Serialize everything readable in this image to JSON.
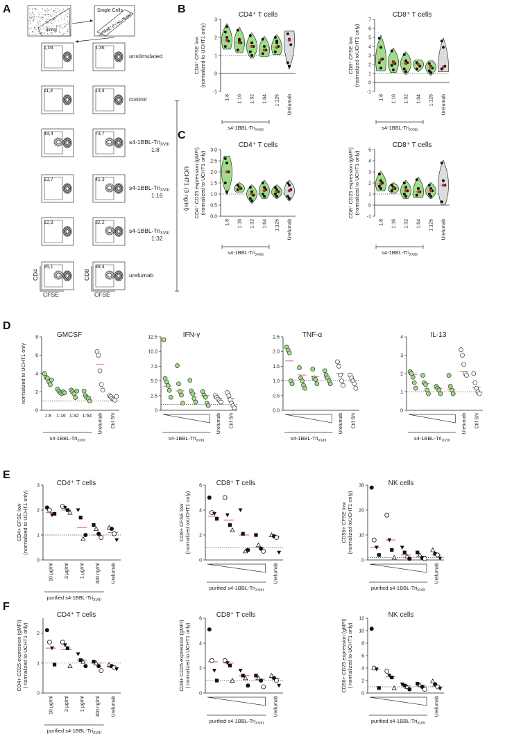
{
  "panel_labels": [
    "A",
    "B",
    "C",
    "D",
    "E",
    "F"
  ],
  "panel_a": {
    "gate_labels": [
      "living",
      "Single Cells"
    ],
    "rows": [
      {
        "cd4": "1,04",
        "cd8": "1,36",
        "label": "unstimulated",
        "label2": ""
      },
      {
        "cd4": "11,4",
        "cd8": "13,4",
        "label": "control",
        "label2": ""
      },
      {
        "cd4": "49,4",
        "cd8": "73,7",
        "label": "s4-1BBL-Tri",
        "sub": "XVIII",
        "label2": "1:8"
      },
      {
        "cd4": "13,7",
        "cd8": "41,3",
        "label": "s4-1BBL-Tri",
        "sub": "XVIII",
        "label2": "1:16"
      },
      {
        "cd4": "12,9",
        "cd8": "32,2",
        "label": "s4-1BBL-Tri",
        "sub": "XVIII",
        "label2": "1:32"
      },
      {
        "cd4": "26,1",
        "cd8": "39,4",
        "label": "urelumab",
        "label2": ""
      }
    ],
    "axis_y_left": "CD4",
    "axis_y_right": "CD8",
    "axis_x": "CFSE",
    "bracket_label": "UCHT1 (3 ng/ml)"
  },
  "common": {
    "agent": "s4-1BBL-Tri",
    "agent_sub": "XVIII",
    "purified_agent": "purified s4-1BBL-Tri",
    "urelumab": "Urelumab",
    "ctrl_sn": "Ctrl SN",
    "dilutions": [
      "1:8",
      "1:16",
      "1:32",
      "1:64",
      "1:125"
    ],
    "concentrations": [
      "10 µg/ml",
      "3 µg/ml",
      "1 µg/ml",
      "300 ng/ml"
    ]
  },
  "colors": {
    "green": "#9fdd88",
    "grey": "#dcdcdc",
    "median": "#e07070",
    "red_dot": "#c03030"
  },
  "chart_data": [
    {
      "id": "B1",
      "type": "violin",
      "title": "CD4⁺ T cells",
      "ylabel": "CD4⁺ CFSE low",
      "ylabel2": "(normalized to UCHT1 only)",
      "ylim": [
        -1,
        3
      ],
      "yticks": [
        "-1",
        "0",
        "1",
        "2",
        "3"
      ],
      "ytick_vals": [
        -1,
        0,
        1,
        2,
        3
      ],
      "categories": [
        "1:8",
        "1:16",
        "1:32",
        "1:64",
        "1:125",
        "Urelumab"
      ],
      "points": [
        [
          2.3,
          2.0,
          1.8,
          1.5,
          2.6
        ],
        [
          2.4,
          1.8,
          1.7,
          1.3,
          1.9
        ],
        [
          2.1,
          1.7,
          1.5,
          1.2,
          1.0
        ],
        [
          1.9,
          1.5,
          1.3,
          1.1
        ],
        [
          2.0,
          1.7,
          1.5,
          1.2,
          1.8
        ],
        [
          2.2,
          1.9,
          1.6,
          0.6,
          0.4
        ]
      ],
      "medians": [
        1.85,
        1.7,
        1.5,
        1.3,
        1.45,
        1.85
      ]
    },
    {
      "id": "B2",
      "type": "violin",
      "title": "CD8⁺ T cells",
      "ylabel": "CD8⁺ CFSE low",
      "ylabel2": "(normalized toUCHT1 only)",
      "ylim": [
        -1,
        7
      ],
      "yticks": [
        "-1",
        "0",
        "1",
        "2",
        "3",
        "4",
        "5",
        "6",
        "7"
      ],
      "ytick_vals": [
        -1,
        0,
        1,
        2,
        3,
        4,
        5,
        6,
        7
      ],
      "categories": [
        "1:8",
        "1:16",
        "1:32",
        "1:64",
        "1:125",
        "Urelumab"
      ],
      "points": [
        [
          4.9,
          3.9,
          2.6,
          2.2,
          1.6
        ],
        [
          3.5,
          2.3,
          2.1,
          1.9,
          1.4
        ],
        [
          3.1,
          2.4,
          2.2,
          1.5,
          1.2
        ],
        [
          2.2,
          2.0,
          1.8,
          1.5
        ],
        [
          2.1,
          1.8,
          1.6,
          1.3,
          1.1
        ],
        [
          4.6,
          3.9,
          1.8,
          1.5
        ]
      ],
      "medians": [
        2.5,
        2.2,
        2.1,
        2.0,
        1.7,
        1.7
      ]
    },
    {
      "id": "C1",
      "type": "violin",
      "title": "CD4⁺ T cells",
      "ylabel": "CD4⁺ CD25 expression (gMFI)",
      "ylabel2": "(normalized to UCHT1 only)",
      "ylim": [
        0,
        3
      ],
      "yticks": [
        "0.0",
        "0.5",
        "1.0",
        "1.5",
        "2.0",
        "2.5",
        "3.0"
      ],
      "ytick_vals": [
        0,
        0.5,
        1,
        1.5,
        2,
        2.5,
        3
      ],
      "categories": [
        "1:8",
        "1:16",
        "1:32",
        "1:64",
        "1:125",
        "Urelumab"
      ],
      "points": [
        [
          2.6,
          2.4,
          2.0,
          1.5,
          1.1
        ],
        [
          1.4,
          1.3,
          1.25,
          1.2
        ],
        [
          1.3,
          1.1,
          0.95,
          0.8,
          0.7
        ],
        [
          1.5,
          1.3,
          1.2,
          1.0,
          0.9
        ],
        [
          1.3,
          1.2,
          1.1,
          1.0,
          0.9
        ],
        [
          1.5,
          1.4,
          1.2,
          0.9,
          0.8
        ]
      ],
      "medians": [
        2.0,
        1.25,
        1.0,
        1.15,
        1.1,
        1.15
      ]
    },
    {
      "id": "C2",
      "type": "violin",
      "title": "CD8⁺ T cells",
      "ylabel": "CD8⁺ CD25 expression (gMFI)",
      "ylabel2": "(normalized to UCHT1 only)",
      "ylim": [
        -1,
        5
      ],
      "yticks": [
        "-1",
        "0",
        "1",
        "2",
        "3",
        "4",
        "5"
      ],
      "ytick_vals": [
        -1,
        0,
        1,
        2,
        3,
        4,
        5
      ],
      "categories": [
        "1:8",
        "1:16",
        "1:32",
        "1:64",
        "1:125",
        "Urelumab"
      ],
      "points": [
        [
          2.8,
          2.2,
          2.0,
          1.7,
          1.5
        ],
        [
          1.8,
          1.6,
          1.5,
          1.3
        ],
        [
          2.0,
          1.6,
          1.3,
          1.0,
          0.8
        ],
        [
          2.3,
          1.5,
          1.2,
          0.9
        ],
        [
          1.8,
          1.5,
          1.3,
          1.0,
          0.8
        ],
        [
          3.8,
          2.2,
          1.8,
          0.3
        ]
      ],
      "medians": [
        1.9,
        1.5,
        1.3,
        1.2,
        1.3,
        1.8
      ]
    },
    {
      "id": "D1",
      "type": "scatter",
      "title": "GMCSF",
      "ylabel": "normalized to UCHT1 only",
      "ylim": [
        0,
        8
      ],
      "yticks": [
        "0",
        "2",
        "4",
        "6",
        "8"
      ],
      "ytick_vals": [
        0,
        2,
        4,
        6,
        8
      ],
      "categories": [
        "1:8",
        "1:16",
        "1:32",
        "1:64",
        "Urelumab",
        "Ctrl SN"
      ],
      "xlabels": "dilutions",
      "fills": [
        "green",
        "green",
        "green",
        "green",
        "white",
        "white"
      ],
      "points": [
        [
          4.0,
          3.6,
          3.5,
          3.1,
          2.8,
          3.3
        ],
        [
          2.3,
          2.1,
          1.9,
          1.8,
          2.0,
          1.9
        ],
        [
          2.2,
          2.0,
          1.8,
          1.4,
          2.1
        ],
        [
          2.1,
          1.6,
          1.4,
          1.3,
          1.0
        ],
        [
          6.4,
          6.0,
          4.3,
          2.8,
          2.2
        ],
        [
          1.6,
          1.5,
          1.3,
          1.2,
          1.1,
          1.5
        ]
      ],
      "medians": [
        3.4,
        2.0,
        2.1,
        1.5,
        5.0,
        1.3
      ]
    },
    {
      "id": "D2",
      "type": "scatter",
      "title": "IFN-γ",
      "ylim": [
        0,
        12.5
      ],
      "yticks": [
        "0",
        "2.5",
        "5.0",
        "7.5",
        "10.0",
        "12.5"
      ],
      "ytick_vals": [
        0,
        2.5,
        5,
        7.5,
        10,
        12.5
      ],
      "categories": [
        "",
        "",
        "",
        "",
        "Urelumab",
        "Ctrl SN"
      ],
      "xlabels": "wedge",
      "fills": [
        "green",
        "green",
        "green",
        "green",
        "white",
        "white"
      ],
      "points": [
        [
          12.0,
          5.4,
          4.8,
          4.2,
          3.4,
          2.2
        ],
        [
          7.6,
          4.5,
          3.2,
          2.6,
          1.2
        ],
        [
          5.1,
          3.3,
          2.8,
          2.0,
          1.4
        ],
        [
          3.2,
          2.6,
          2.2,
          1.2,
          0.8
        ],
        [
          2.5,
          2.2,
          1.9,
          1.6,
          1.4
        ],
        [
          3.0,
          2.5,
          1.8,
          1.2,
          0.8,
          0.4
        ]
      ],
      "medians": [
        4.1,
        3.3,
        2.8,
        2.5,
        2.0,
        2.0
      ]
    },
    {
      "id": "D3",
      "type": "scatter",
      "title": "TNF-α",
      "ylim": [
        0,
        2.5
      ],
      "yticks": [
        "0.0",
        "0.5",
        "1.0",
        "1.5",
        "2.0",
        "2.5"
      ],
      "ytick_vals": [
        0,
        0.5,
        1,
        1.5,
        2,
        2.5
      ],
      "categories": [
        "",
        "",
        "",
        "",
        "Urelumab",
        "Ctrl SN"
      ],
      "xlabels": "wedge",
      "fills": [
        "green",
        "green",
        "green",
        "green",
        "white",
        "white"
      ],
      "points": [
        [
          2.15,
          2.05,
          1.95,
          1.0,
          0.9
        ],
        [
          1.45,
          1.1,
          1.0,
          0.85,
          0.75
        ],
        [
          1.4,
          1.1,
          1.05,
          0.9
        ],
        [
          1.35,
          1.2,
          1.1,
          1.0,
          0.9
        ],
        [
          1.65,
          1.5,
          1.2,
          1.0,
          0.85
        ],
        [
          1.2,
          1.1,
          1.0,
          0.9,
          0.75
        ]
      ],
      "medians": [
        1.68,
        1.2,
        1.15,
        1.1,
        1.25,
        1.0
      ]
    },
    {
      "id": "D4",
      "type": "scatter",
      "title": "IL-13",
      "ylim": [
        0,
        4
      ],
      "yticks": [
        "0",
        "1",
        "2",
        "3",
        "4"
      ],
      "ytick_vals": [
        0,
        1,
        2,
        3,
        4
      ],
      "categories": [
        "",
        "",
        "",
        "",
        "Urelumab",
        "Ctrl SN"
      ],
      "xlabels": "wedge",
      "fills": [
        "green",
        "green",
        "green",
        "green",
        "white",
        "white"
      ],
      "points": [
        [
          2.1,
          2.0,
          1.8,
          1.5,
          1.2
        ],
        [
          1.9,
          1.5,
          1.4,
          1.1,
          0.9
        ],
        [
          1.3,
          1.2,
          1.1,
          0.9
        ],
        [
          1.9,
          1.3,
          1.1,
          0.9
        ],
        [
          3.3,
          3.0,
          2.5,
          2.0,
          1.9
        ],
        [
          2.0,
          1.5,
          1.2,
          1.0,
          0.9
        ]
      ],
      "medians": [
        1.95,
        1.45,
        1.2,
        1.15,
        2.1,
        1.25
      ]
    },
    {
      "id": "E1",
      "type": "marker-scatter",
      "title": "CD4⁺ T cells",
      "ylabel": "CD4+ CFSE low",
      "ylabel2": "(normalized to UCHT1 only)",
      "ylim": [
        0,
        3
      ],
      "yticks": [
        "0",
        "1",
        "2",
        "3"
      ],
      "ytick_vals": [
        0,
        1,
        2,
        3
      ],
      "categories": [
        "10 µg/ml",
        "3 µg/ml",
        "1 µg/ml",
        "300 ng/ml",
        "Urelumab"
      ],
      "xlabels": "conc",
      "points": [
        [
          2.1,
          2.0,
          1.8,
          1.85
        ],
        [
          2.15,
          2.1,
          2.0,
          1.9
        ],
        [
          2.0,
          1.7,
          0.85,
          1.0
        ],
        [
          1.4,
          1.25,
          1.05,
          0.9
        ],
        [
          1.3,
          1.25,
          1.05,
          0.8
        ]
      ],
      "medians": [
        1.9,
        2.0,
        1.3,
        1.0,
        1.1
      ]
    },
    {
      "id": "E2",
      "type": "marker-scatter",
      "title": "CD8⁺ T cells",
      "ylabel": "CD8+ CFSE low",
      "ylabel2": "(normalized toUCHT1 only)",
      "ylim": [
        0,
        6
      ],
      "yticks": [
        "0",
        "2",
        "4",
        "6"
      ],
      "ytick_vals": [
        0,
        2,
        4,
        6
      ],
      "categories": [
        "",
        "",
        "",
        "",
        "Urelumab"
      ],
      "xlabels": "wedge",
      "points": [
        [
          5.0,
          3.8,
          3.7,
          3.3
        ],
        [
          5.0,
          3.6,
          2.8,
          2.4
        ],
        [
          4.0,
          2.1,
          0.7,
          0.8
        ],
        [
          2.0,
          1.2,
          0.9,
          0.7
        ],
        [
          2.0,
          1.9,
          1.8,
          0.6
        ]
      ],
      "medians": [
        3.5,
        3.2,
        2.0,
        1.0,
        1.9
      ]
    },
    {
      "id": "E3",
      "type": "marker-scatter",
      "title": "NK cells",
      "ylabel": "CD56+ CFSE low",
      "ylabel2": "(normalized toUCHT1 only)",
      "ylim": [
        0,
        30
      ],
      "yticks": [
        "0",
        "10",
        "20",
        "30"
      ],
      "ytick_vals": [
        0,
        10,
        20,
        30
      ],
      "categories": [
        "",
        "",
        "",
        "",
        "Urelumab"
      ],
      "xlabels": "wedge",
      "points": [
        [
          29,
          8,
          5,
          2
        ],
        [
          18,
          8,
          4,
          1
        ],
        [
          5,
          3,
          1.5,
          0.5
        ],
        [
          3,
          2,
          0.8,
          0.5
        ],
        [
          4,
          2.5,
          2,
          0.6
        ]
      ],
      "medians": [
        5,
        8,
        2,
        1.5,
        2
      ]
    },
    {
      "id": "F1",
      "type": "marker-scatter",
      "title": "CD4⁺ T cells",
      "ylabel": "CD4+ CD25 expression (gMFI)",
      "ylabel2": "( normalized to UCHT1 only)",
      "ylim": [
        0,
        2.5
      ],
      "yticks": [
        "0",
        "1",
        "2"
      ],
      "ytick_vals": [
        0,
        1,
        2
      ],
      "categories": [
        "10 µg/ml",
        "3 µg/ml",
        "1 µg/ml",
        "300 ng/ml",
        "Urelumab"
      ],
      "xlabels": "conc",
      "points": [
        [
          2.1,
          1.7,
          1.5,
          0.95
        ],
        [
          1.7,
          1.6,
          1.5,
          0.9
        ],
        [
          1.3,
          1.1,
          1.05,
          0.9
        ],
        [
          1.05,
          1.0,
          0.9,
          0.75
        ],
        [
          0.95,
          0.9,
          0.85,
          0.8
        ]
      ],
      "medians": [
        1.5,
        1.45,
        1.1,
        1.0,
        0.85
      ]
    },
    {
      "id": "F2",
      "type": "marker-scatter",
      "title": "CD8⁺ T cells",
      "ylabel": "CD8+ CD25 expression (gMFI)",
      "ylabel2": "( normalized to UCHT1 only)",
      "ylim": [
        0,
        6
      ],
      "yticks": [
        "0",
        "2",
        "4",
        "6"
      ],
      "ytick_vals": [
        0,
        2,
        4,
        6
      ],
      "categories": [
        "",
        "",
        "",
        "",
        "Urelumab"
      ],
      "xlabels": "wedge",
      "points": [
        [
          5.1,
          2.6,
          1.8,
          1.0
        ],
        [
          2.6,
          2.4,
          2.2,
          1.0
        ],
        [
          1.8,
          1.4,
          1.2,
          0.6
        ],
        [
          1.4,
          1.2,
          1.0,
          0.5
        ],
        [
          1.4,
          1.2,
          1.0,
          0.6
        ]
      ],
      "medians": [
        2.5,
        2.4,
        1.4,
        1.1,
        1.2
      ]
    },
    {
      "id": "F3",
      "type": "marker-scatter",
      "title": "NK cells",
      "ylabel": "CD56+ CD25 expression (gMFI)",
      "ylabel2": "( normalized to UCHT1 only)",
      "ylim": [
        0,
        12
      ],
      "yticks": [
        "0",
        "2",
        "4",
        "6",
        "8",
        "10",
        "12"
      ],
      "ytick_vals": [
        0,
        2,
        4,
        6,
        8,
        10,
        12
      ],
      "categories": [
        "",
        "",
        "",
        "",
        "Urelumab"
      ],
      "xlabels": "wedge",
      "points": [
        [
          10.3,
          4.0,
          3.8,
          0.8
        ],
        [
          3.5,
          2.8,
          2.5,
          0.8
        ],
        [
          1.4,
          1.2,
          1.0,
          0.6
        ],
        [
          1.5,
          1.3,
          1.0,
          0.6
        ],
        [
          1.9,
          1.4,
          1.0,
          0.7
        ]
      ],
      "medians": [
        3.8,
        2.6,
        1.2,
        1.2,
        1.1
      ]
    }
  ]
}
